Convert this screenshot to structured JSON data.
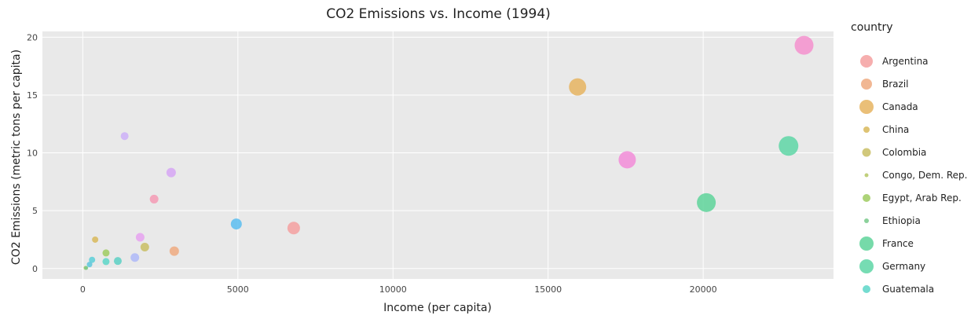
{
  "chart_data": {
    "type": "scatter",
    "title": "CO2 Emissions vs. Income (1994)",
    "xlabel": "Income (per capita)",
    "ylabel": "CO2 Emissions (metric tons per capita)",
    "xlim": [
      -1300,
      24200
    ],
    "ylim": [
      -0.9,
      20.5
    ],
    "xticks": [
      0,
      5000,
      10000,
      15000,
      20000
    ],
    "xtick_labels": [
      "0",
      "5000",
      "10000",
      "15000",
      "20000"
    ],
    "yticks": [
      0,
      5,
      10,
      15,
      20
    ],
    "ytick_labels": [
      "0",
      "5",
      "10",
      "15",
      "20"
    ],
    "grid": true,
    "legend": {
      "title": "country",
      "placement": "right",
      "entries": [
        {
          "name": "Argentina",
          "color": "#F4A0A0",
          "size": 16
        },
        {
          "name": "Brazil",
          "color": "#EFAA80",
          "size": 14
        },
        {
          "name": "Canada",
          "color": "#E6B460",
          "size": 18
        },
        {
          "name": "China",
          "color": "#D8B85A",
          "size": 8
        },
        {
          "name": "Colombia",
          "color": "#C9BE64",
          "size": 11
        },
        {
          "name": "Congo, Dem. Rep.",
          "color": "#B5C764",
          "size": 5
        },
        {
          "name": "Egypt, Arab Rep.",
          "color": "#9FCB60",
          "size": 10
        },
        {
          "name": "Ethiopia",
          "color": "#78C98A",
          "size": 6
        },
        {
          "name": "France",
          "color": "#5ED49A",
          "size": 18
        },
        {
          "name": "Germany",
          "color": "#5ED6A6",
          "size": 18
        },
        {
          "name": "Guatemala",
          "color": "#5CD6C8",
          "size": 10
        }
      ]
    },
    "series": [
      {
        "name": "Argentina",
        "color": "#F4A0A0",
        "points": [
          {
            "x": 6800,
            "y": 3.5,
            "s": 16
          }
        ]
      },
      {
        "name": "Brazil",
        "color": "#EFAA80",
        "points": [
          {
            "x": 2950,
            "y": 1.5,
            "s": 12
          }
        ]
      },
      {
        "name": "Canada",
        "color": "#E6B460",
        "points": [
          {
            "x": 15950,
            "y": 15.7,
            "s": 22
          }
        ]
      },
      {
        "name": "China",
        "color": "#D8B85A",
        "points": [
          {
            "x": 400,
            "y": 2.5,
            "s": 8
          }
        ]
      },
      {
        "name": "Colombia",
        "color": "#C9BE64",
        "points": [
          {
            "x": 2000,
            "y": 1.85,
            "s": 11
          }
        ]
      },
      {
        "name": "Congo, Dem. Rep.",
        "color": "#B5C764",
        "points": [
          {
            "x": 90,
            "y": 0.05,
            "s": 5
          }
        ]
      },
      {
        "name": "Egypt, Arab Rep.",
        "color": "#9FCB60",
        "points": [
          {
            "x": 750,
            "y": 1.35,
            "s": 9
          }
        ]
      },
      {
        "name": "Ethiopia",
        "color": "#78C98A",
        "points": [
          {
            "x": 110,
            "y": 0.05,
            "s": 5
          }
        ]
      },
      {
        "name": "France",
        "color": "#5ED49A",
        "points": [
          {
            "x": 20100,
            "y": 5.7,
            "s": 24
          }
        ]
      },
      {
        "name": "Germany",
        "color": "#5ED6A6",
        "points": [
          {
            "x": 22750,
            "y": 10.6,
            "s": 25
          }
        ]
      },
      {
        "name": "Guatemala",
        "color": "#5CD6C8",
        "points": [
          {
            "x": 750,
            "y": 0.6,
            "s": 9
          }
        ]
      },
      {
        "name": "",
        "color": "#5CCFD8",
        "points": [
          {
            "x": 300,
            "y": 0.75,
            "s": 8
          }
        ]
      },
      {
        "name": "",
        "color": "#5CC6DC",
        "points": [
          {
            "x": 220,
            "y": 0.35,
            "s": 7
          }
        ]
      },
      {
        "name": "",
        "color": "#5CD0C4",
        "points": [
          {
            "x": 1130,
            "y": 0.65,
            "s": 10
          }
        ]
      },
      {
        "name": "",
        "color": "#5BBDF0",
        "points": [
          {
            "x": 4950,
            "y": 3.85,
            "s": 14
          }
        ]
      },
      {
        "name": "",
        "color": "#AEB8F8",
        "points": [
          {
            "x": 1680,
            "y": 0.95,
            "s": 11
          }
        ]
      },
      {
        "name": "",
        "color": "#CDB0F8",
        "points": [
          {
            "x": 1350,
            "y": 11.45,
            "s": 10
          }
        ]
      },
      {
        "name": "",
        "color": "#D6A6F4",
        "points": [
          {
            "x": 2850,
            "y": 8.3,
            "s": 12
          }
        ]
      },
      {
        "name": "",
        "color": "#E6A2F0",
        "points": [
          {
            "x": 1850,
            "y": 2.7,
            "s": 11
          }
        ]
      },
      {
        "name": "",
        "color": "#F28CD8",
        "points": [
          {
            "x": 17550,
            "y": 9.4,
            "s": 22
          }
        ]
      },
      {
        "name": "",
        "color": "#F590CE",
        "points": [
          {
            "x": 23250,
            "y": 19.3,
            "s": 24
          }
        ]
      },
      {
        "name": "",
        "color": "#F49AB4",
        "points": [
          {
            "x": 2300,
            "y": 6.0,
            "s": 11
          }
        ]
      }
    ]
  }
}
